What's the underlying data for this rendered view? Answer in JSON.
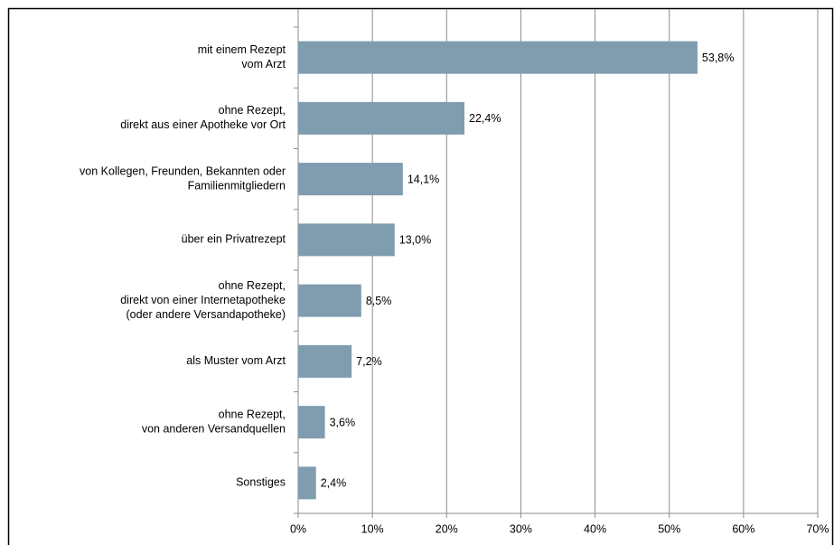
{
  "chart_data": {
    "type": "barh",
    "categories": [
      [
        "mit einem Rezept",
        "vom Arzt"
      ],
      [
        "ohne Rezept,",
        "direkt aus einer Apotheke vor Ort"
      ],
      [
        "von Kollegen, Freunden, Bekannten oder",
        "Familienmitgliedern"
      ],
      [
        "über ein Privatrezept"
      ],
      [
        "ohne Rezept,",
        "direkt von einer Internetapotheke",
        "(oder andere Versandapotheke)"
      ],
      [
        "als Muster vom Arzt"
      ],
      [
        "ohne Rezept,",
        "von anderen Versandquellen"
      ],
      [
        "Sonstiges"
      ]
    ],
    "values": [
      53.8,
      22.4,
      14.1,
      13.0,
      8.5,
      7.2,
      3.6,
      2.4
    ],
    "value_labels": [
      "53,8%",
      "22,4%",
      "14,1%",
      "13,0%",
      "8,5%",
      "7,2%",
      "3,6%",
      "2,4%"
    ],
    "color": "#7f9dae",
    "xlim": [
      0,
      70
    ],
    "xticks": [
      {
        "value": 0,
        "label": "0%"
      },
      {
        "value": 10,
        "label": "10%"
      },
      {
        "value": 20,
        "label": "20%"
      },
      {
        "value": 30,
        "label": "30%"
      },
      {
        "value": 40,
        "label": "40%"
      },
      {
        "value": 50,
        "label": "50%"
      },
      {
        "value": 60,
        "label": "60%"
      },
      {
        "value": 70,
        "label": "70%"
      }
    ],
    "grid": true
  }
}
